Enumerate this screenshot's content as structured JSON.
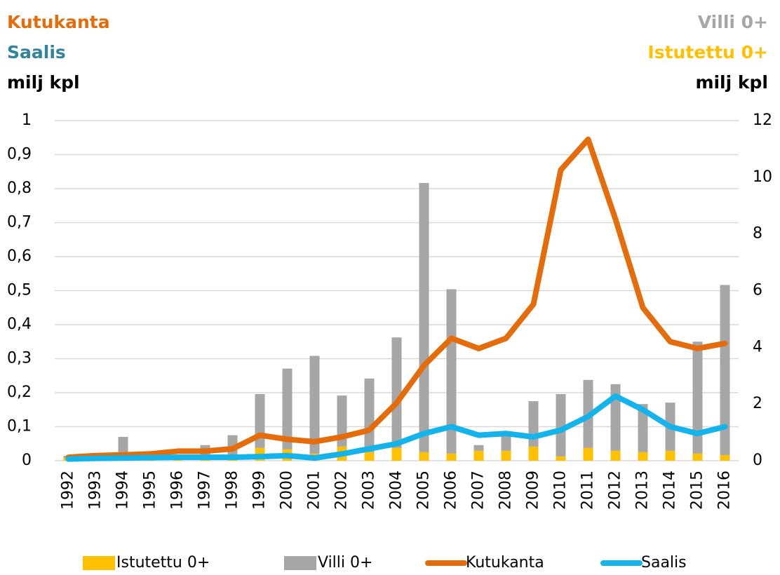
{
  "chart_data": {
    "type": "combo",
    "y_label": [
      {
        "text": "Kutukanta",
        "color": "#e46c0a"
      },
      {
        "text": "Saalis",
        "color": "#31849b"
      },
      {
        "text": "milj kpl",
        "color": "#000000"
      }
    ],
    "y2_label": [
      {
        "text": "Villi 0+",
        "color": "#a6a6a6"
      },
      {
        "text": "Istutettu 0+",
        "color": "#ffc000"
      },
      {
        "text": "milj kpl",
        "color": "#000000"
      }
    ],
    "categories": [
      "1992",
      "1993",
      "1994",
      "1995",
      "1996",
      "1997",
      "1998",
      "1999",
      "2000",
      "2001",
      "2002",
      "2003",
      "2004",
      "2005",
      "2006",
      "2007",
      "2008",
      "2009",
      "2010",
      "2011",
      "2012",
      "2013",
      "2014",
      "2015",
      "2016"
    ],
    "series": [
      {
        "name": "Istutettu 0+",
        "type": "bar",
        "axis": "y2",
        "color": "#ffc000",
        "values": [
          0.1,
          0.03,
          0.3,
          0.03,
          0.03,
          0.15,
          0.2,
          0.45,
          0.4,
          0.25,
          0.5,
          0.3,
          0.45,
          0.3,
          0.25,
          0.35,
          0.35,
          0.5,
          0.15,
          0.45,
          0.35,
          0.3,
          0.35,
          0.25,
          0.2
        ]
      },
      {
        "name": "Villi 0+",
        "type": "bar",
        "axis": "y2",
        "color": "#a6a6a6",
        "values": [
          0.07,
          0.02,
          0.54,
          0.02,
          0.02,
          0.4,
          0.7,
          1.9,
          2.85,
          3.45,
          1.8,
          2.6,
          3.9,
          9.5,
          5.8,
          0.2,
          0.6,
          1.6,
          2.2,
          2.4,
          2.35,
          1.7,
          1.7,
          3.95,
          6.0
        ]
      },
      {
        "name": "Kutukanta",
        "type": "line",
        "color": "#e46c0a",
        "values": [
          0.01,
          0.015,
          0.017,
          0.02,
          0.028,
          0.028,
          0.035,
          0.075,
          0.063,
          0.056,
          0.07,
          0.09,
          0.17,
          0.28,
          0.36,
          0.33,
          0.36,
          0.46,
          0.855,
          0.945,
          0.71,
          0.45,
          0.35,
          0.33,
          0.345
        ]
      },
      {
        "name": "Saalis",
        "type": "line",
        "color": "#14b4ea",
        "values": [
          0.005,
          0.007,
          0.008,
          0.009,
          0.01,
          0.01,
          0.01,
          0.012,
          0.015,
          0.008,
          0.02,
          0.035,
          0.05,
          0.08,
          0.1,
          0.075,
          0.08,
          0.07,
          0.09,
          0.13,
          0.19,
          0.15,
          0.1,
          0.08,
          0.1
        ]
      }
    ],
    "ylim": [
      0,
      1
    ],
    "yticks": [
      0,
      {
        "value": 0.1,
        "label": "0,1"
      },
      {
        "value": 0.2,
        "label": "0,2"
      },
      {
        "value": 0.3,
        "label": "0,3"
      },
      {
        "value": 0.4,
        "label": "0,4"
      },
      {
        "value": 0.5,
        "label": "0,5"
      },
      {
        "value": 0.6,
        "label": "0,6"
      },
      {
        "value": 0.7,
        "label": "0,7"
      },
      {
        "value": 0.8,
        "label": "0,8"
      },
      {
        "value": 0.9,
        "label": "0,9"
      },
      1
    ],
    "y2lim": [
      0,
      12
    ],
    "y2ticks": [
      0,
      2,
      4,
      6,
      8,
      10,
      12
    ],
    "grid": true,
    "legend": "bottom"
  }
}
